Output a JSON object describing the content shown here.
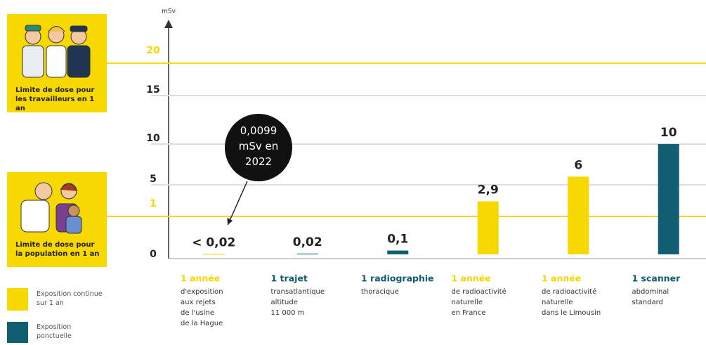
{
  "chart_data": {
    "type": "bar",
    "y_label": "mSv",
    "ylim": [
      0,
      20
    ],
    "yticks": [
      0,
      1,
      5,
      10,
      15,
      20
    ],
    "reference_lines": [
      {
        "value": 20,
        "label": "Limite de dose pour les travailleurs en 1 an",
        "color": "#f7d800"
      },
      {
        "value": 1,
        "label": "Limite de dose pour la population en 1 an",
        "color": "#f7d800"
      }
    ],
    "categories": [
      "1 année",
      "1 trajet",
      "1 radiographie",
      "1 année",
      "1 année",
      "1 scanner"
    ],
    "descriptions": [
      [
        "d'exposition",
        "aux rejets",
        "de l'usine",
        "de la Hague"
      ],
      [
        "transatlantique",
        "altitude",
        "11 000 m"
      ],
      [
        "thoracique"
      ],
      [
        "de radioactivité",
        "naturelle",
        "en France"
      ],
      [
        "de radioactivité",
        "naturelle",
        "dans le Limousin"
      ],
      [
        "abdominal",
        "standard"
      ]
    ],
    "series": [
      {
        "name": "Exposition continue sur 1 an",
        "color": "#f7d800",
        "values": [
          0.0099,
          null,
          null,
          2.9,
          6,
          null
        ],
        "value_labels": [
          "< 0,02",
          null,
          null,
          "2,9",
          "6",
          null
        ]
      },
      {
        "name": "Exposition ponctuelle",
        "color": "#0f5e72",
        "values": [
          null,
          0.02,
          0.1,
          null,
          null,
          10
        ],
        "value_labels": [
          null,
          "0,02",
          "0,1",
          null,
          null,
          "10"
        ]
      }
    ],
    "annotation": {
      "text": "0,0099 mSv en 2022",
      "category_index": 0
    },
    "grid": true
  }
}
